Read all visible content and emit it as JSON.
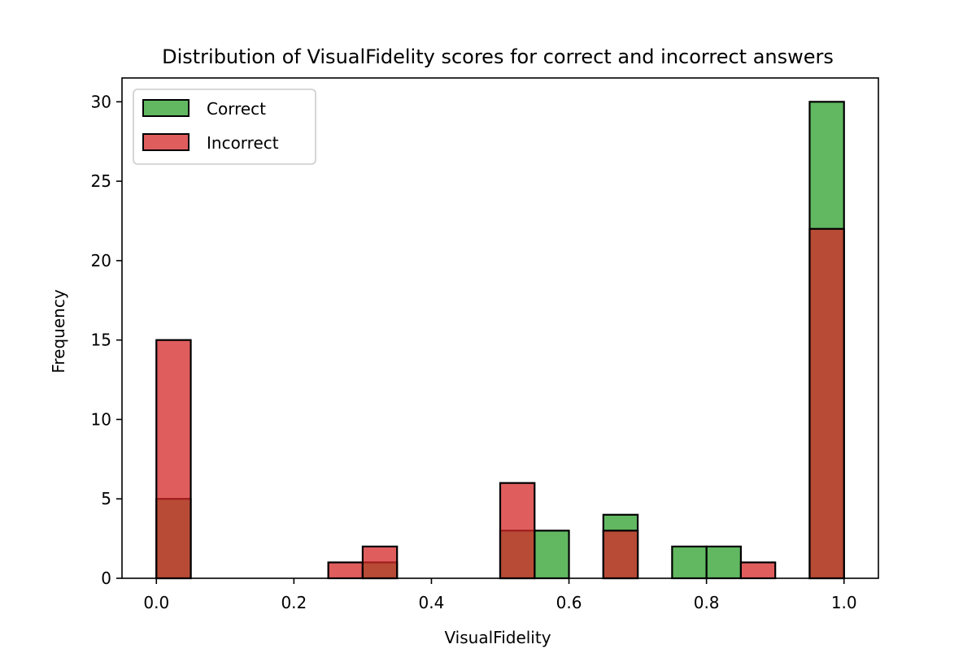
{
  "chart_data": {
    "type": "bar",
    "title": "Distribution of VisualFidelity scores for correct and incorrect answers",
    "xlabel": "VisualFidelity",
    "ylabel": "Frequency",
    "xlim": [
      -0.05,
      1.05
    ],
    "ylim": [
      0,
      31.5
    ],
    "xticks": [
      0.0,
      0.2,
      0.4,
      0.6,
      0.8,
      1.0
    ],
    "xtick_labels": [
      "0.0",
      "0.2",
      "0.4",
      "0.6",
      "0.8",
      "1.0"
    ],
    "yticks": [
      0,
      5,
      10,
      15,
      20,
      25,
      30
    ],
    "ytick_labels": [
      "0",
      "5",
      "10",
      "15",
      "20",
      "25",
      "30"
    ],
    "grid": false,
    "legend_position": "top-left",
    "bin_edges": [
      0.0,
      0.05,
      0.1,
      0.15,
      0.2,
      0.25,
      0.3,
      0.35,
      0.4,
      0.45,
      0.5,
      0.55,
      0.6,
      0.65,
      0.7,
      0.75,
      0.8,
      0.85,
      0.9,
      0.95,
      1.0
    ],
    "series": [
      {
        "name": "Correct",
        "color": "#2ca02c",
        "values": [
          5,
          0,
          0,
          0,
          0,
          0,
          1,
          0,
          0,
          0,
          3,
          3,
          0,
          4,
          0,
          2,
          2,
          0,
          0,
          30
        ]
      },
      {
        "name": "Incorrect",
        "color": "#d62728",
        "values": [
          15,
          0,
          0,
          0,
          0,
          1,
          2,
          0,
          0,
          0,
          6,
          0,
          0,
          3,
          0,
          0,
          0,
          1,
          0,
          22
        ]
      }
    ]
  }
}
